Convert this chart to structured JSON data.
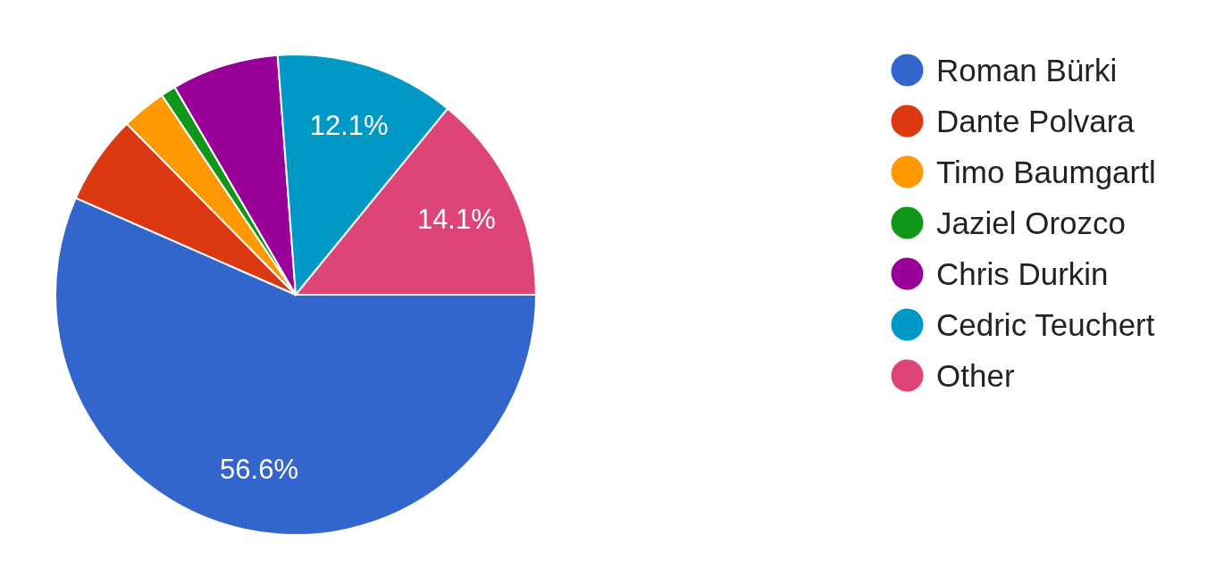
{
  "chart_data": {
    "type": "pie",
    "categories": [
      "Roman Bürki",
      "Dante Polvara",
      "Timo Baumgartl",
      "Jaziel Orozco",
      "Chris Durkin",
      "Cedric Teuchert",
      "Other"
    ],
    "values": [
      56.6,
      6.0,
      3.0,
      1.0,
      7.2,
      12.1,
      14.1
    ],
    "colors": [
      "#3366cc",
      "#dc3912",
      "#ff9900",
      "#109618",
      "#990099",
      "#0099c6",
      "#dd4477"
    ],
    "value_labels": [
      "56.6%",
      null,
      null,
      null,
      null,
      "12.1%",
      "14.1%"
    ],
    "legend": "top right"
  }
}
